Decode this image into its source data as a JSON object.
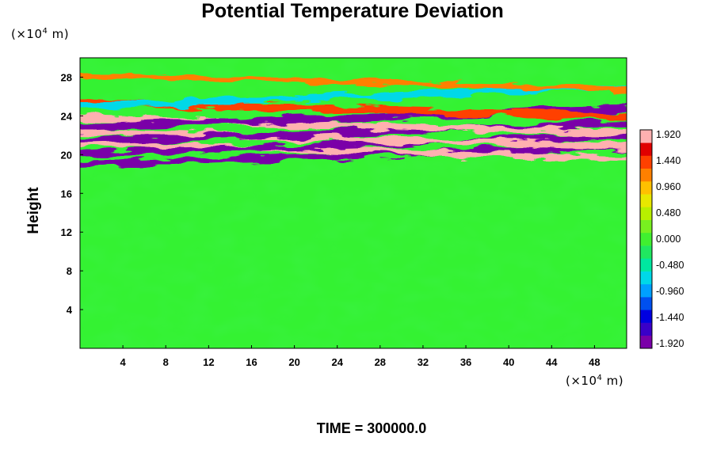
{
  "chart_data": {
    "type": "heatmap",
    "title": "Potential Temperature Deviation",
    "ylabel": "Height",
    "y_unit": "(×10",
    "y_unit_exp": "4",
    "y_unit_tail": " m)",
    "x_unit": "(×10",
    "x_unit_exp": "4",
    "x_unit_tail": " m)",
    "xlim": [
      0,
      51
    ],
    "ylim": [
      0,
      30
    ],
    "xticks": [
      4,
      8,
      12,
      16,
      20,
      24,
      28,
      32,
      36,
      40,
      44,
      48
    ],
    "yticks": [
      4,
      8,
      12,
      16,
      20,
      24,
      28
    ],
    "colorbar": {
      "min": -1.92,
      "max": 1.92,
      "labels": [
        "1.920",
        "1.440",
        "0.960",
        "0.480",
        "0.000",
        "-0.480",
        "-0.960",
        "-1.440",
        "-1.920"
      ],
      "colors": [
        "#7a00a8",
        "#3a00c8",
        "#0000e0",
        "#0050f0",
        "#00a0ff",
        "#00d8e8",
        "#00e8a0",
        "#20e860",
        "#40f030",
        "#78f020",
        "#b8f000",
        "#e8e800",
        "#ffc000",
        "#ff8000",
        "#ff4000",
        "#e00000",
        "#ffb0b0"
      ]
    },
    "bands": [
      {
        "y": 19.9,
        "value": -1.9
      },
      {
        "y": 20.4,
        "value": 1.9
      },
      {
        "y": 21.0,
        "value": -1.9
      },
      {
        "y": 21.6,
        "value": 1.9
      },
      {
        "y": 22.3,
        "value": -1.9
      },
      {
        "y": 23.0,
        "value": 1.9
      },
      {
        "y": 23.8,
        "value": -1.9
      },
      {
        "y": 24.7,
        "value": 1.5
      },
      {
        "y": 26.0,
        "value": -0.7
      },
      {
        "y": 27.5,
        "value": 1.2
      }
    ],
    "time_label": "TIME = 300000.0"
  }
}
